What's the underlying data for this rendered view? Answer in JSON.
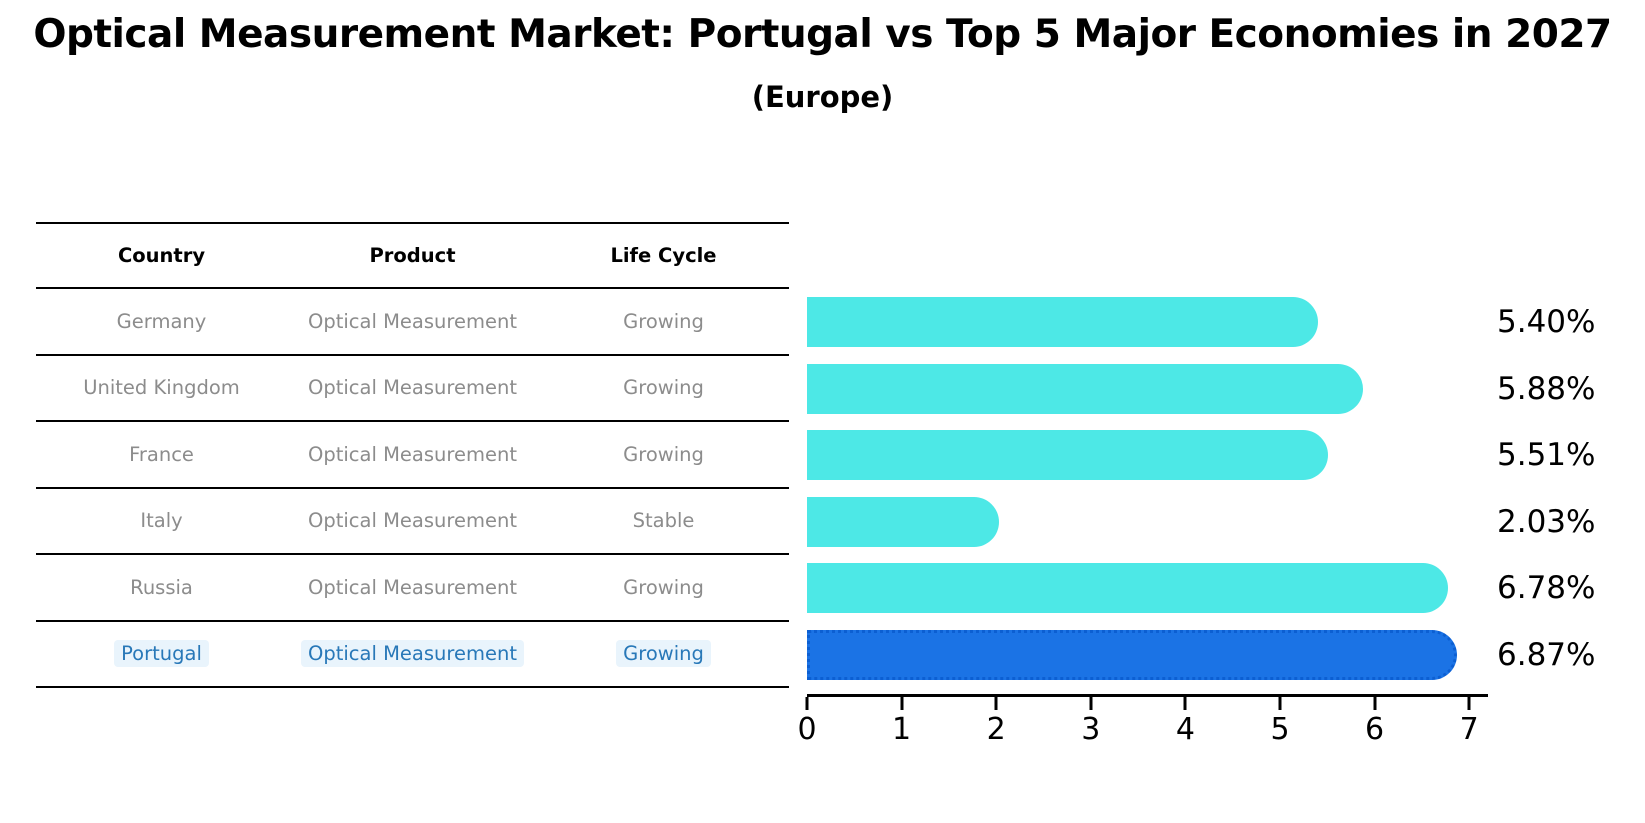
{
  "title": "Optical Measurement Market: Portugal vs Top 5 Major Economies in 2027",
  "subtitle": "(Europe)",
  "colors": {
    "bar": "#4de8e6",
    "highlight_bar": "#1b73e5",
    "highlight_bar_border": "#0c5fd2",
    "highlight_text": "#2878b8",
    "table_text": "#8c8c8c",
    "axis": "#000000"
  },
  "table": {
    "headers": [
      "Country",
      "Product",
      "Life Cycle"
    ],
    "rows": [
      {
        "country": "Germany",
        "product": "Optical Measurement",
        "life_cycle": "Growing"
      },
      {
        "country": "United Kingdom",
        "product": "Optical Measurement",
        "life_cycle": "Growing"
      },
      {
        "country": "France",
        "product": "Optical Measurement",
        "life_cycle": "Growing"
      },
      {
        "country": "Italy",
        "product": "Optical Measurement",
        "life_cycle": "Stable"
      },
      {
        "country": "Russia",
        "product": "Optical Measurement",
        "life_cycle": "Growing"
      },
      {
        "country": "Portugal",
        "product": "Optical Measurement",
        "life_cycle": "Growing"
      }
    ]
  },
  "chart_data": {
    "type": "bar",
    "orientation": "horizontal",
    "title": "Optical Measurement Market: Portugal vs Top 5 Major Economies in 2027 (Europe)",
    "categories": [
      "Germany",
      "United Kingdom",
      "France",
      "Italy",
      "Russia",
      "Portugal"
    ],
    "values": [
      5.4,
      5.88,
      5.51,
      2.03,
      6.78,
      6.87
    ],
    "value_labels": [
      "5.40%",
      "5.88%",
      "5.51%",
      "2.03%",
      "6.78%",
      "6.87%"
    ],
    "unit": "percent",
    "xticks": [
      0,
      1,
      2,
      3,
      4,
      5,
      6,
      7
    ],
    "xlim": [
      0,
      7.2
    ],
    "highlight_index": 5,
    "grid": false,
    "legend": false
  }
}
